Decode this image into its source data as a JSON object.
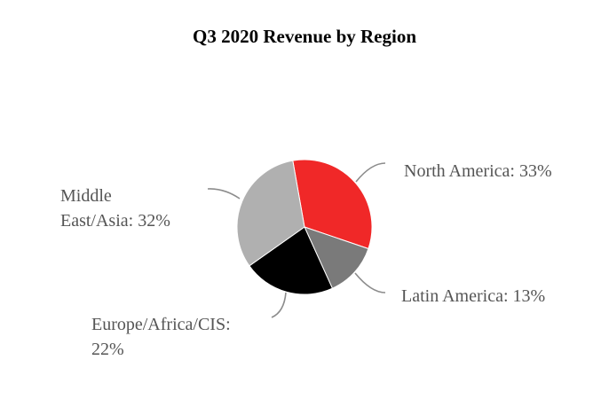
{
  "chart_data": {
    "type": "pie",
    "title": "Q3 2020 Revenue by Region",
    "slices": [
      {
        "name": "North America",
        "value": 33,
        "color": "#f02828",
        "label_lines": [
          "North America: 33%"
        ]
      },
      {
        "name": "Latin America",
        "value": 13,
        "color": "#7a7a7a",
        "label_lines": [
          "Latin America: 13%"
        ]
      },
      {
        "name": "Europe/Africa/CIS",
        "value": 22,
        "color": "#000000",
        "label_lines": [
          "Europe/Africa/CIS:",
          "22%"
        ]
      },
      {
        "name": "Middle East/Asia",
        "value": 32,
        "color": "#b0b0b0",
        "label_lines": [
          "Middle",
          "East/Asia: 32%"
        ]
      }
    ],
    "legend": "none",
    "grid": false
  }
}
